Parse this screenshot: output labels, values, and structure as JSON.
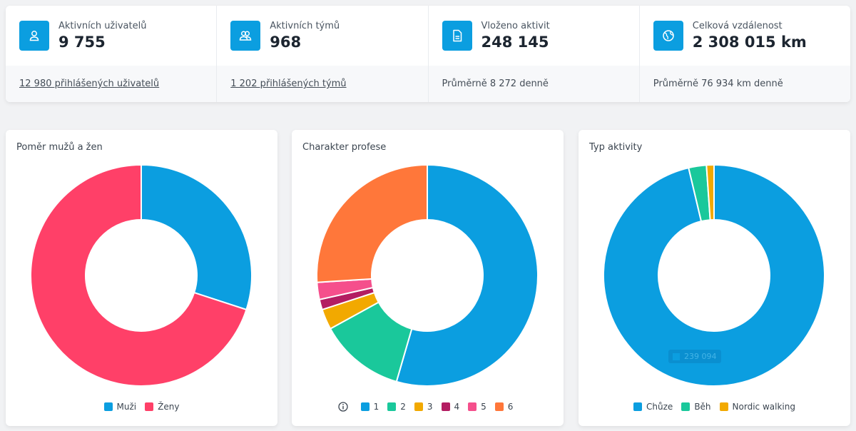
{
  "stats": [
    {
      "label": "Aktivních uživatelů",
      "value": "9 755",
      "footer": "12 980 přihlášených uživatelů",
      "icon": "user-icon"
    },
    {
      "label": "Aktivních týmů",
      "value": "968",
      "footer": "1 202 přihlášených týmů",
      "icon": "team-icon"
    },
    {
      "label": "Vloženo aktivit",
      "value": "248 145",
      "footer": "Průměrně 8 272 denně",
      "icon": "document-icon"
    },
    {
      "label": "Celková vzdálenost",
      "value": "2 308 015 km",
      "footer": "Průměrně 76 934 km denně",
      "icon": "globe-icon"
    }
  ],
  "colors": {
    "accent": "#0b9ee0"
  },
  "tooltip": {
    "value": "239 094"
  },
  "chart_data": [
    {
      "type": "pie",
      "title": "Poměr mužů a žen",
      "categories": [
        "Muži",
        "Ženy"
      ],
      "values": [
        30,
        70
      ],
      "colors": [
        "#0b9ee0",
        "#ff4068"
      ],
      "legend": "bottom"
    },
    {
      "type": "pie",
      "title": "Charakter profese",
      "categories": [
        "1",
        "2",
        "3",
        "4",
        "5",
        "6"
      ],
      "values": [
        54.5,
        12.5,
        3,
        1.5,
        2.5,
        26
      ],
      "colors": [
        "#0b9ee0",
        "#1ac89b",
        "#f2a900",
        "#b31d62",
        "#f54f8c",
        "#ff773a"
      ],
      "legend": "bottom"
    },
    {
      "type": "pie",
      "title": "Typ aktivity",
      "categories": [
        "Chůze",
        "Běh",
        "Nordic walking"
      ],
      "values": [
        96.3,
        2.6,
        1.1
      ],
      "colors": [
        "#0b9ee0",
        "#1ac89b",
        "#f2a900"
      ],
      "legend": "bottom"
    }
  ]
}
